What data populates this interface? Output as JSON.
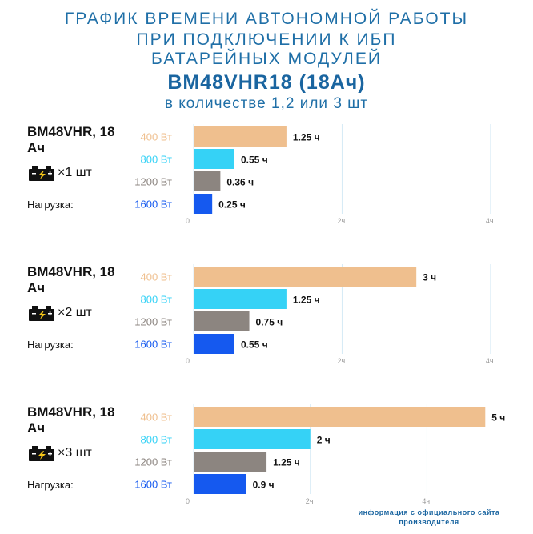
{
  "header": {
    "line1": "ГРАФИК ВРЕМЕНИ АВТОНОМНОЙ РАБОТЫ",
    "line2": "ПРИ ПОДКЛЮЧЕНИИ К ИБП",
    "line3": "БАТАРЕЙНЫХ МОДУЛЕЙ",
    "model": "BM48VHR18 (18Ач)",
    "line5": "в количестве 1,2 или 3 шт"
  },
  "colors": {
    "title": "#1f6fa7",
    "bars": [
      "#efbf8e",
      "#35d2f6",
      "#8c8580",
      "#1559ef"
    ],
    "labels": [
      "#efbf8e",
      "#35d2f6",
      "#8c8580",
      "#1559ef"
    ],
    "gridline": "#d5eaf5"
  },
  "panels": [
    {
      "model_label": "BM48VHR, 18 Ач",
      "battery_icon": "battery-icon",
      "count_label": "×1 шт",
      "load_label": "Нагрузка:"
    },
    {
      "model_label": "BM48VHR, 18 Ач",
      "battery_icon": "battery-icon",
      "count_label": "×2 шт",
      "load_label": "Нагрузка:"
    },
    {
      "model_label": "BM48VHR, 18 Ач",
      "battery_icon": "battery-icon",
      "count_label": "×3 шт",
      "load_label": "Нагрузка:"
    }
  ],
  "chart_data": [
    {
      "type": "bar",
      "orientation": "horizontal",
      "categories": [
        "400 Вт",
        "800 Вт",
        "1200 Вт",
        "1600 Вт"
      ],
      "values": [
        1.25,
        0.55,
        0.36,
        0.25
      ],
      "data_labels": [
        "1.25 ч",
        "0.55 ч",
        "0.36 ч",
        "0.25 ч"
      ],
      "xlim": [
        0,
        4.4
      ],
      "xticks": [
        0,
        2,
        4
      ],
      "xtick_labels": [
        "0",
        "2ч",
        "4ч"
      ],
      "grid": true
    },
    {
      "type": "bar",
      "orientation": "horizontal",
      "categories": [
        "400 Вт",
        "800 Вт",
        "1200 Вт",
        "1600 Вт"
      ],
      "values": [
        3,
        1.25,
        0.75,
        0.55
      ],
      "data_labels": [
        "3 ч",
        "1.25 ч",
        "0.75 ч",
        "0.55 ч"
      ],
      "xlim": [
        0,
        4.4
      ],
      "xticks": [
        0,
        2,
        4
      ],
      "xtick_labels": [
        "0",
        "2ч",
        "4ч"
      ],
      "grid": true
    },
    {
      "type": "bar",
      "orientation": "horizontal",
      "categories": [
        "400 Вт",
        "800 Вт",
        "1200 Вт",
        "1600 Вт"
      ],
      "values": [
        5,
        2,
        1.25,
        0.9
      ],
      "data_labels": [
        "5 ч",
        "2 ч",
        "1.25 ч",
        "0.9 ч"
      ],
      "xlim": [
        0,
        5.6
      ],
      "xticks": [
        0,
        2,
        4
      ],
      "xtick_labels": [
        "0",
        "2ч",
        "4ч"
      ],
      "grid": true
    }
  ],
  "footer": {
    "source_note": "информация с официального сайта производителя"
  }
}
